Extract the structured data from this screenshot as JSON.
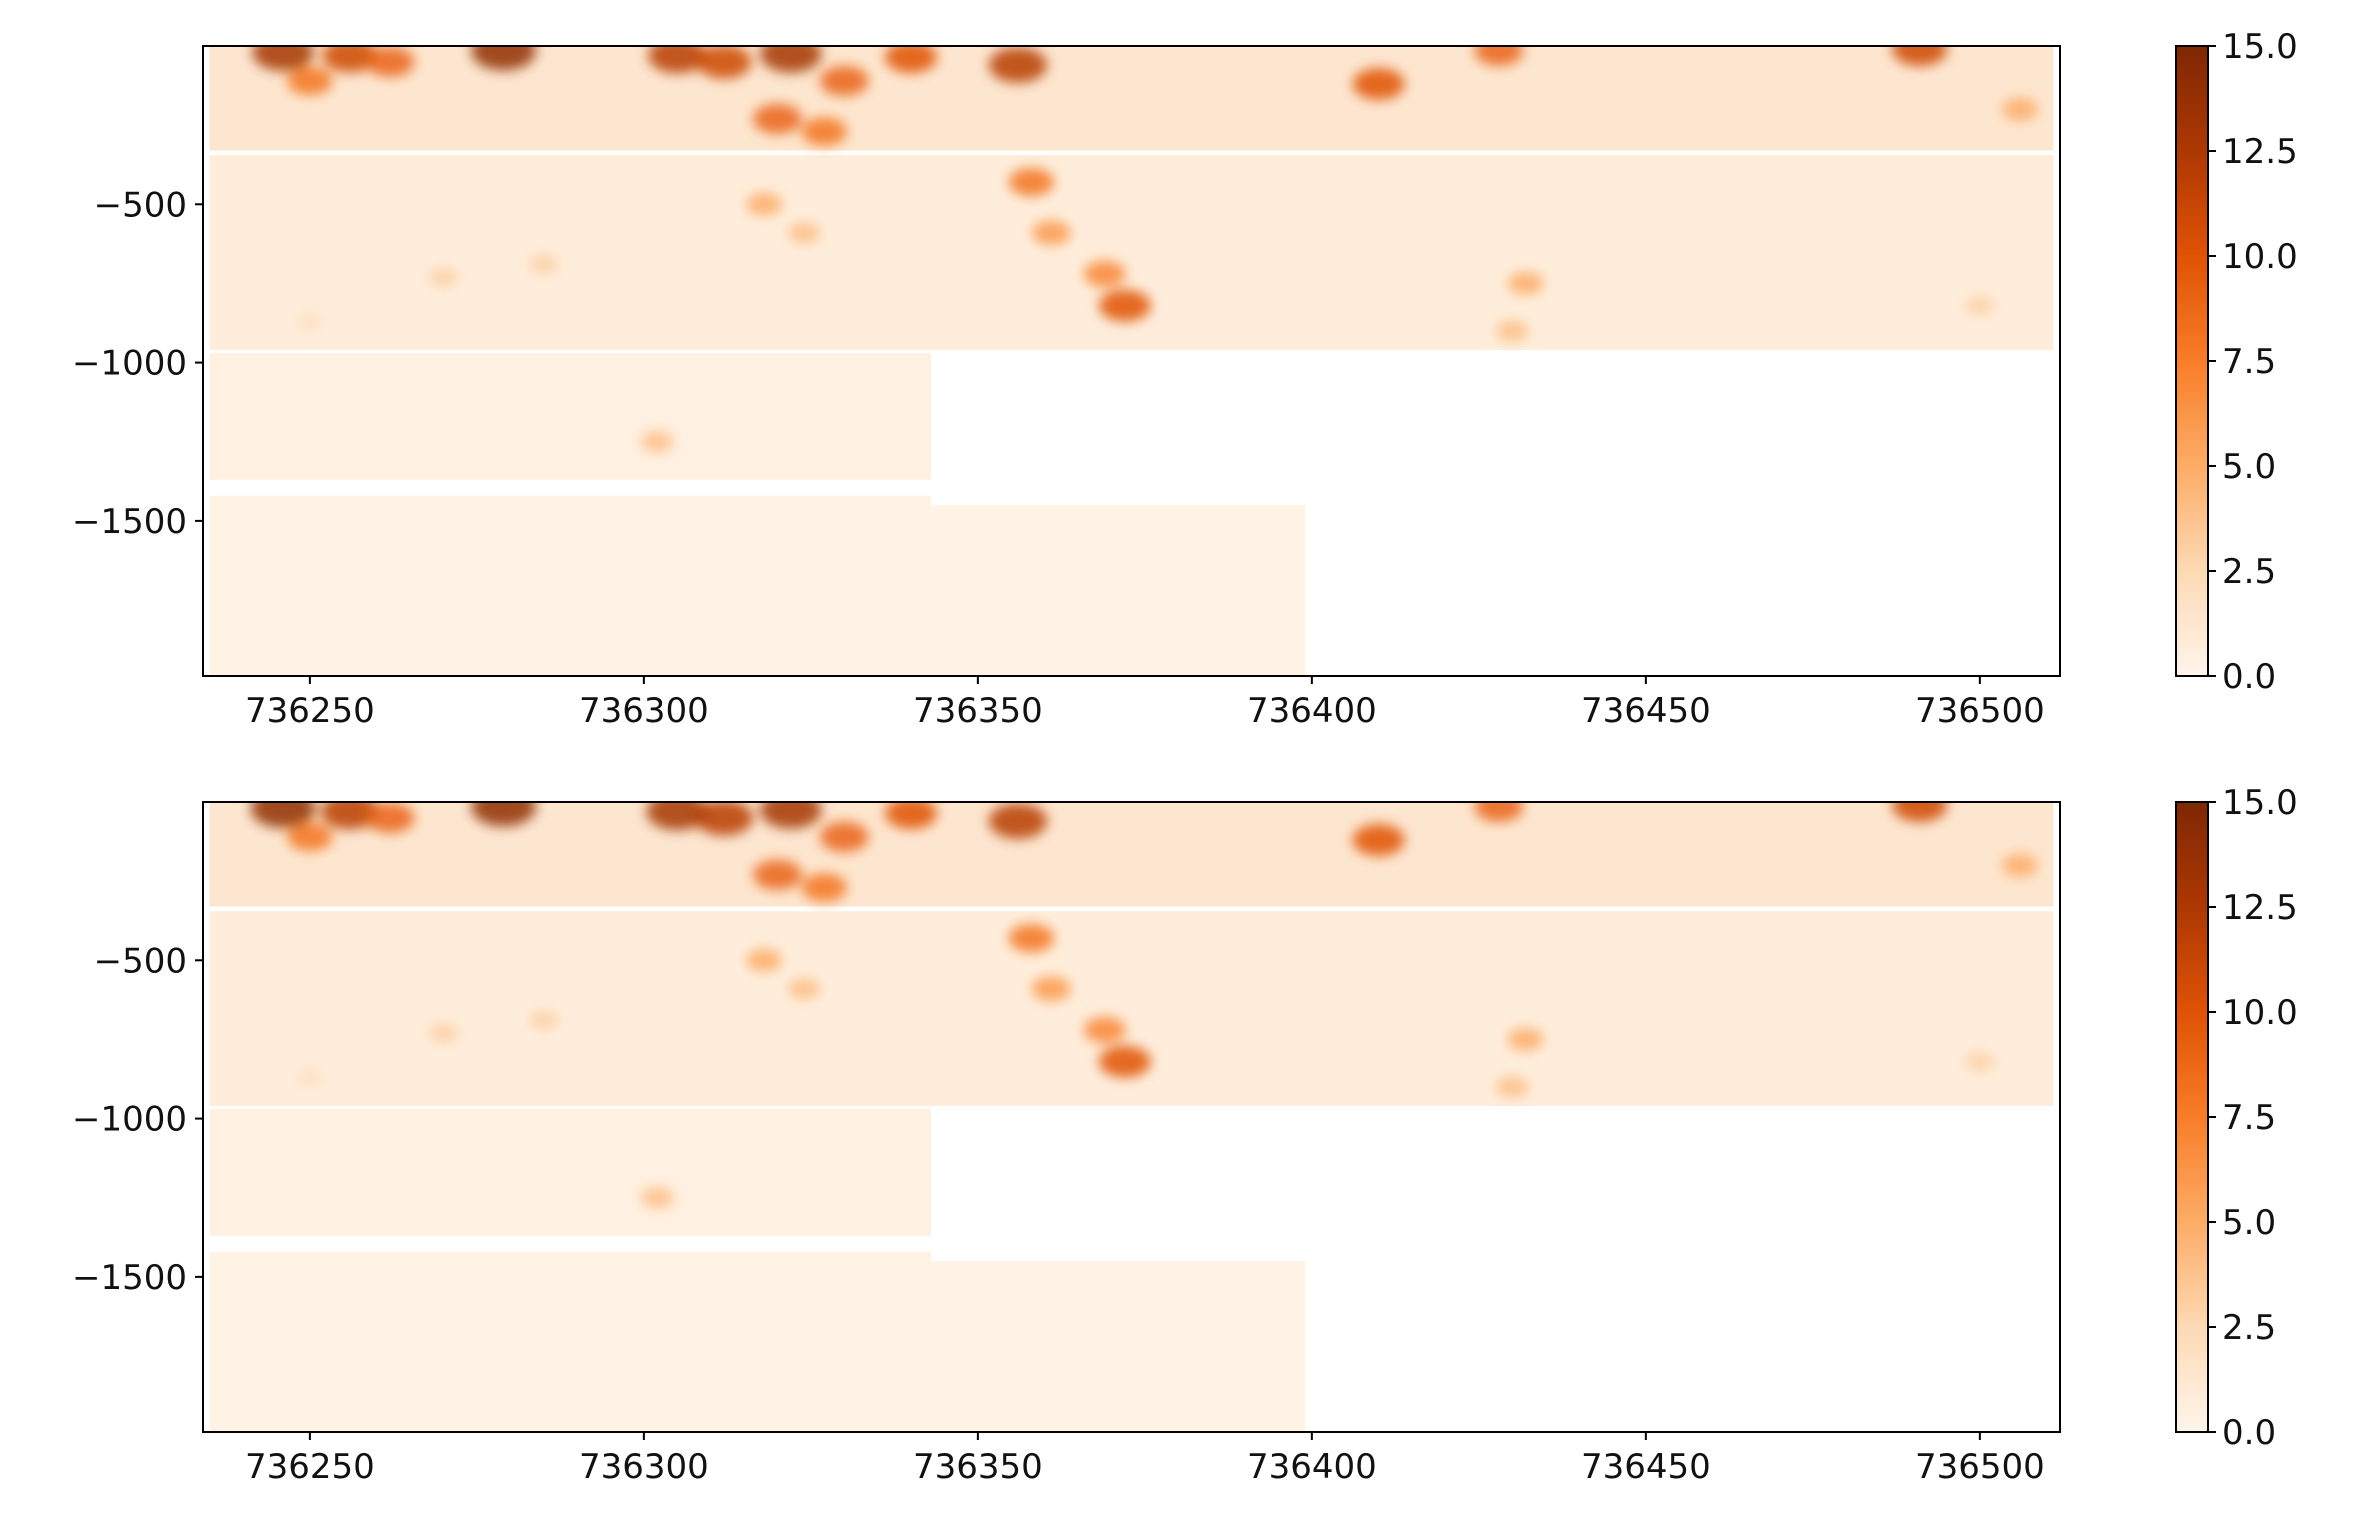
{
  "chart_data": [
    {
      "type": "heatmap",
      "title": "",
      "xlabel": "",
      "ylabel": "",
      "xlim": [
        736234,
        736512
      ],
      "ylim": [
        -1990,
        0
      ],
      "x_ticks": [
        736250,
        736300,
        736350,
        736400,
        736450,
        736500
      ],
      "x_tick_labels": [
        "736250",
        "736300",
        "736350",
        "736400",
        "736450",
        "736500"
      ],
      "y_ticks": [
        -500,
        -1000,
        -1500
      ],
      "y_tick_labels": [
        "−500",
        "−1000",
        "−1500"
      ],
      "colormap": "Oranges",
      "color_range": [
        0,
        15
      ],
      "colorbar_ticks": [
        0,
        2.5,
        5,
        7.5,
        10,
        12.5,
        15
      ],
      "colorbar_tick_labels": [
        "0.0",
        "2.5",
        "5.0",
        "7.5",
        "10.0",
        "12.5",
        "15.0"
      ],
      "colorbar_colors": [
        "#fff5eb",
        "#fdd9b4",
        "#fdac67",
        "#f87d29",
        "#e05206",
        "#ad3803",
        "#7f2704"
      ],
      "grid": false,
      "data_blocks": [
        {
          "x": [
            736235,
            736511
          ],
          "y": [
            -330,
            0
          ],
          "level": "high"
        },
        {
          "x": [
            736235,
            736511
          ],
          "y": [
            -960,
            -345
          ],
          "level": "medium"
        },
        {
          "x": [
            736235,
            736343
          ],
          "y": [
            -1370,
            -970
          ],
          "level": "low"
        },
        {
          "x": [
            736235,
            736343
          ],
          "y": [
            -1990,
            -1420
          ],
          "level": "very-low"
        },
        {
          "x": [
            736343,
            736399
          ],
          "y": [
            -1990,
            -1450
          ],
          "level": "very-low"
        }
      ],
      "hotspots": [
        {
          "x": 736246,
          "y": -20,
          "v": 13
        },
        {
          "x": 736256,
          "y": -30,
          "v": 11
        },
        {
          "x": 736250,
          "y": -110,
          "v": 8
        },
        {
          "x": 736262,
          "y": -50,
          "v": 9
        },
        {
          "x": 736279,
          "y": -15,
          "v": 14
        },
        {
          "x": 736305,
          "y": -30,
          "v": 12
        },
        {
          "x": 736312,
          "y": -50,
          "v": 11
        },
        {
          "x": 736322,
          "y": -25,
          "v": 13
        },
        {
          "x": 736330,
          "y": -110,
          "v": 9
        },
        {
          "x": 736340,
          "y": -35,
          "v": 10
        },
        {
          "x": 736320,
          "y": -230,
          "v": 9
        },
        {
          "x": 736327,
          "y": -270,
          "v": 8
        },
        {
          "x": 736318,
          "y": -500,
          "v": 5
        },
        {
          "x": 736324,
          "y": -590,
          "v": 4
        },
        {
          "x": 736356,
          "y": -60,
          "v": 12
        },
        {
          "x": 736358,
          "y": -430,
          "v": 8
        },
        {
          "x": 736361,
          "y": -590,
          "v": 6
        },
        {
          "x": 736369,
          "y": -720,
          "v": 7
        },
        {
          "x": 736372,
          "y": -820,
          "v": 10
        },
        {
          "x": 736410,
          "y": -120,
          "v": 10
        },
        {
          "x": 736432,
          "y": -750,
          "v": 5
        },
        {
          "x": 736430,
          "y": -900,
          "v": 4
        },
        {
          "x": 736428,
          "y": -15,
          "v": 9
        },
        {
          "x": 736491,
          "y": -10,
          "v": 11
        },
        {
          "x": 736506,
          "y": -200,
          "v": 5
        },
        {
          "x": 736500,
          "y": -820,
          "v": 3
        },
        {
          "x": 736302,
          "y": -1250,
          "v": 4
        },
        {
          "x": 736270,
          "y": -730,
          "v": 3
        },
        {
          "x": 736285,
          "y": -690,
          "v": 3
        },
        {
          "x": 736250,
          "y": -870,
          "v": 2
        }
      ]
    },
    {
      "type": "heatmap",
      "title": "",
      "xlabel": "",
      "ylabel": "",
      "xlim": [
        736234,
        736512
      ],
      "ylim": [
        -1990,
        0
      ],
      "x_ticks": [
        736250,
        736300,
        736350,
        736400,
        736450,
        736500
      ],
      "x_tick_labels": [
        "736250",
        "736300",
        "736350",
        "736400",
        "736450",
        "736500"
      ],
      "y_ticks": [
        -500,
        -1000,
        -1500
      ],
      "y_tick_labels": [
        "−500",
        "−1000",
        "−1500"
      ],
      "colormap": "Oranges",
      "color_range": [
        0,
        15
      ],
      "colorbar_ticks": [
        0,
        2.5,
        5,
        7.5,
        10,
        12.5,
        15
      ],
      "colorbar_tick_labels": [
        "0.0",
        "2.5",
        "5.0",
        "7.5",
        "10.0",
        "12.5",
        "15.0"
      ],
      "colorbar_colors": [
        "#fff5eb",
        "#fdd9b4",
        "#fdac67",
        "#f87d29",
        "#e05206",
        "#ad3803",
        "#7f2704"
      ],
      "grid": false,
      "data_blocks": [
        {
          "x": [
            736235,
            736511
          ],
          "y": [
            -330,
            0
          ],
          "level": "high"
        },
        {
          "x": [
            736235,
            736511
          ],
          "y": [
            -960,
            -345
          ],
          "level": "medium"
        },
        {
          "x": [
            736235,
            736343
          ],
          "y": [
            -1370,
            -970
          ],
          "level": "low"
        },
        {
          "x": [
            736235,
            736343
          ],
          "y": [
            -1990,
            -1420
          ],
          "level": "very-low"
        },
        {
          "x": [
            736343,
            736399
          ],
          "y": [
            -1990,
            -1450
          ],
          "level": "very-low"
        }
      ],
      "hotspots": [
        {
          "x": 736246,
          "y": -20,
          "v": 14
        },
        {
          "x": 736256,
          "y": -30,
          "v": 12
        },
        {
          "x": 736250,
          "y": -110,
          "v": 8
        },
        {
          "x": 736262,
          "y": -50,
          "v": 9
        },
        {
          "x": 736279,
          "y": -15,
          "v": 14
        },
        {
          "x": 736305,
          "y": -30,
          "v": 13
        },
        {
          "x": 736312,
          "y": -50,
          "v": 12
        },
        {
          "x": 736322,
          "y": -25,
          "v": 13
        },
        {
          "x": 736330,
          "y": -110,
          "v": 9
        },
        {
          "x": 736340,
          "y": -35,
          "v": 10
        },
        {
          "x": 736320,
          "y": -230,
          "v": 9
        },
        {
          "x": 736327,
          "y": -270,
          "v": 8
        },
        {
          "x": 736318,
          "y": -500,
          "v": 5
        },
        {
          "x": 736324,
          "y": -590,
          "v": 4
        },
        {
          "x": 736356,
          "y": -60,
          "v": 12
        },
        {
          "x": 736358,
          "y": -430,
          "v": 8
        },
        {
          "x": 736361,
          "y": -590,
          "v": 6
        },
        {
          "x": 736369,
          "y": -720,
          "v": 7
        },
        {
          "x": 736372,
          "y": -820,
          "v": 10
        },
        {
          "x": 736410,
          "y": -120,
          "v": 10
        },
        {
          "x": 736432,
          "y": -750,
          "v": 5
        },
        {
          "x": 736430,
          "y": -900,
          "v": 4
        },
        {
          "x": 736428,
          "y": -15,
          "v": 9
        },
        {
          "x": 736491,
          "y": -10,
          "v": 11
        },
        {
          "x": 736506,
          "y": -200,
          "v": 5
        },
        {
          "x": 736500,
          "y": -820,
          "v": 3
        },
        {
          "x": 736302,
          "y": -1250,
          "v": 4
        },
        {
          "x": 736270,
          "y": -730,
          "v": 3
        },
        {
          "x": 736285,
          "y": -690,
          "v": 3
        },
        {
          "x": 736250,
          "y": -870,
          "v": 2
        }
      ]
    }
  ]
}
